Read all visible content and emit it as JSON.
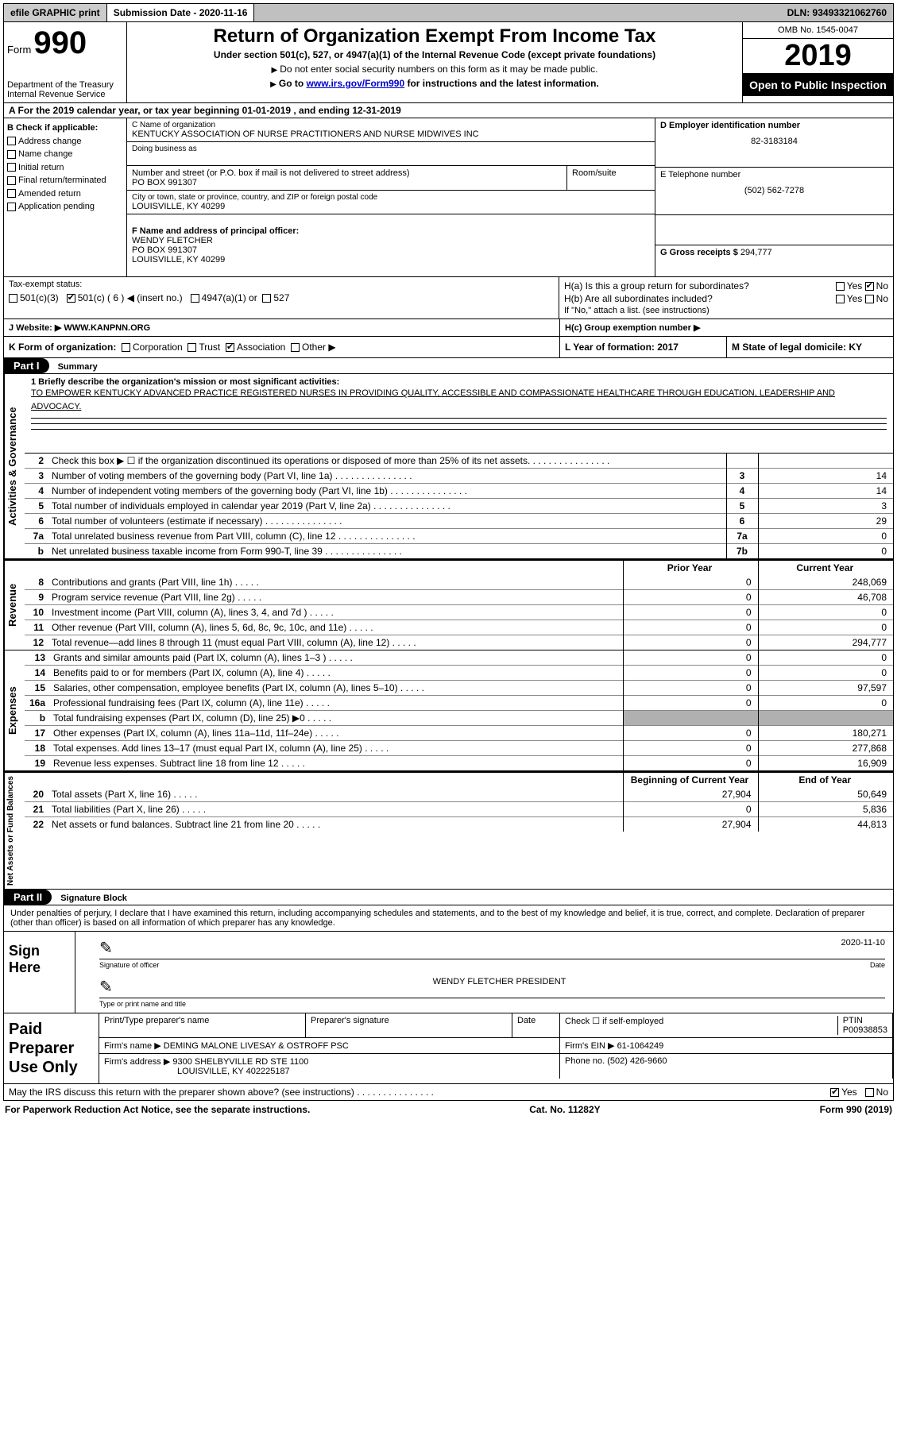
{
  "topbar": {
    "efile": "efile GRAPHIC print",
    "subdate_label": "Submission Date - 2020-11-16",
    "dln": "DLN: 93493321062760"
  },
  "header": {
    "form_word": "Form",
    "form_num": "990",
    "dept": "Department of the Treasury\nInternal Revenue Service",
    "title": "Return of Organization Exempt From Income Tax",
    "sub": "Under section 501(c), 527, or 4947(a)(1) of the Internal Revenue Code (except private foundations)",
    "instr1": "Do not enter social security numbers on this form as it may be made public.",
    "instr2_pre": "Go to ",
    "instr2_link": "www.irs.gov/Form990",
    "instr2_post": " for instructions and the latest information.",
    "omb": "OMB No. 1545-0047",
    "year": "2019",
    "inspect": "Open to Public Inspection"
  },
  "rowA": "A  For the 2019 calendar year, or tax year beginning 01-01-2019    , and ending 12-31-2019",
  "colB": {
    "title": "B Check if applicable:",
    "items": [
      "Address change",
      "Name change",
      "Initial return",
      "Final return/terminated",
      "Amended return",
      "Application pending"
    ]
  },
  "colC": {
    "name_lbl": "C Name of organization",
    "name": "KENTUCKY ASSOCIATION OF NURSE PRACTITIONERS AND NURSE MIDWIVES INC",
    "dba_lbl": "Doing business as",
    "addr_lbl": "Number and street (or P.O. box if mail is not delivered to street address)",
    "room_lbl": "Room/suite",
    "addr": "PO BOX 991307",
    "city_lbl": "City or town, state or province, country, and ZIP or foreign postal code",
    "city": "LOUISVILLE, KY  40299",
    "officer_lbl": "F  Name and address of principal officer:",
    "officer": "WENDY FLETCHER\nPO BOX 991307\nLOUISVILLE, KY  40299"
  },
  "colD": {
    "ein_lbl": "D Employer identification number",
    "ein": "82-3183184",
    "phone_lbl": "E Telephone number",
    "phone": "(502) 562-7278",
    "gross_lbl": "G Gross receipts $",
    "gross": "294,777"
  },
  "colH": {
    "a": "H(a)  Is this a group return for subordinates?",
    "b": "H(b)  Are all subordinates included?",
    "note": "If \"No,\" attach a list. (see instructions)",
    "c": "H(c)  Group exemption number ▶",
    "yes": "Yes",
    "no": "No"
  },
  "taxstatus": {
    "label": "Tax-exempt status:",
    "opts": [
      "501(c)(3)",
      "501(c) ( 6 ) ◀ (insert no.)",
      "4947(a)(1) or",
      "527"
    ]
  },
  "website": {
    "lbl": "J   Website: ▶",
    "val": "WWW.KANPNN.ORG"
  },
  "rowK": {
    "k": "K Form of organization:",
    "opts": [
      "Corporation",
      "Trust",
      "Association",
      "Other ▶"
    ],
    "L": "L Year of formation: 2017",
    "M": "M State of legal domicile: KY"
  },
  "part1": {
    "bar": "Part I",
    "title": "Summary"
  },
  "mission": {
    "label": "1  Briefly describe the organization's mission or most significant activities:",
    "text": "TO EMPOWER KENTUCKY ADVANCED PRACTICE REGISTERED NURSES IN PROVIDING QUALITY, ACCESSIBLE AND COMPASSIONATE HEALTHCARE THROUGH EDUCATION, LEADERSHIP AND ADVOCACY."
  },
  "gov_side": "Activities & Governance",
  "rev_side": "Revenue",
  "exp_side": "Expenses",
  "net_side": "Net Assets or Fund Balances",
  "gov_rows": [
    {
      "n": "2",
      "d": "Check this box ▶ ☐  if the organization discontinued its operations or disposed of more than 25% of its net assets.",
      "box": "",
      "val": ""
    },
    {
      "n": "3",
      "d": "Number of voting members of the governing body (Part VI, line 1a)",
      "box": "3",
      "val": "14"
    },
    {
      "n": "4",
      "d": "Number of independent voting members of the governing body (Part VI, line 1b)",
      "box": "4",
      "val": "14"
    },
    {
      "n": "5",
      "d": "Total number of individuals employed in calendar year 2019 (Part V, line 2a)",
      "box": "5",
      "val": "3"
    },
    {
      "n": "6",
      "d": "Total number of volunteers (estimate if necessary)",
      "box": "6",
      "val": "29"
    },
    {
      "n": "7a",
      "d": "Total unrelated business revenue from Part VIII, column (C), line 12",
      "box": "7a",
      "val": "0"
    },
    {
      "n": "b",
      "d": "Net unrelated business taxable income from Form 990-T, line 39",
      "box": "7b",
      "val": "0"
    }
  ],
  "fin_hdr": {
    "prior": "Prior Year",
    "curr": "Current Year"
  },
  "rev_rows": [
    {
      "n": "8",
      "d": "Contributions and grants (Part VIII, line 1h)",
      "p": "0",
      "c": "248,069"
    },
    {
      "n": "9",
      "d": "Program service revenue (Part VIII, line 2g)",
      "p": "0",
      "c": "46,708"
    },
    {
      "n": "10",
      "d": "Investment income (Part VIII, column (A), lines 3, 4, and 7d )",
      "p": "0",
      "c": "0"
    },
    {
      "n": "11",
      "d": "Other revenue (Part VIII, column (A), lines 5, 6d, 8c, 9c, 10c, and 11e)",
      "p": "0",
      "c": "0"
    },
    {
      "n": "12",
      "d": "Total revenue—add lines 8 through 11 (must equal Part VIII, column (A), line 12)",
      "p": "0",
      "c": "294,777"
    }
  ],
  "exp_rows": [
    {
      "n": "13",
      "d": "Grants and similar amounts paid (Part IX, column (A), lines 1–3 )",
      "p": "0",
      "c": "0"
    },
    {
      "n": "14",
      "d": "Benefits paid to or for members (Part IX, column (A), line 4)",
      "p": "0",
      "c": "0"
    },
    {
      "n": "15",
      "d": "Salaries, other compensation, employee benefits (Part IX, column (A), lines 5–10)",
      "p": "0",
      "c": "97,597"
    },
    {
      "n": "16a",
      "d": "Professional fundraising fees (Part IX, column (A), line 11e)",
      "p": "0",
      "c": "0"
    },
    {
      "n": "b",
      "d": "Total fundraising expenses (Part IX, column (D), line 25) ▶0",
      "p": "",
      "c": "",
      "shade": true
    },
    {
      "n": "17",
      "d": "Other expenses (Part IX, column (A), lines 11a–11d, 11f–24e)",
      "p": "0",
      "c": "180,271"
    },
    {
      "n": "18",
      "d": "Total expenses. Add lines 13–17 (must equal Part IX, column (A), line 25)",
      "p": "0",
      "c": "277,868"
    },
    {
      "n": "19",
      "d": "Revenue less expenses. Subtract line 18 from line 12",
      "p": "0",
      "c": "16,909"
    }
  ],
  "net_hdr": {
    "beg": "Beginning of Current Year",
    "end": "End of Year"
  },
  "net_rows": [
    {
      "n": "20",
      "d": "Total assets (Part X, line 16)",
      "p": "27,904",
      "c": "50,649"
    },
    {
      "n": "21",
      "d": "Total liabilities (Part X, line 26)",
      "p": "0",
      "c": "5,836"
    },
    {
      "n": "22",
      "d": "Net assets or fund balances. Subtract line 21 from line 20",
      "p": "27,904",
      "c": "44,813"
    }
  ],
  "part2": {
    "bar": "Part II",
    "title": "Signature Block"
  },
  "sig": {
    "decl": "Under penalties of perjury, I declare that I have examined this return, including accompanying schedules and statements, and to the best of my knowledge and belief, it is true, correct, and complete. Declaration of preparer (other than officer) is based on all information of which preparer has any knowledge.",
    "here": "Sign Here",
    "officer_sig": "Signature of officer",
    "date": "2020-11-10",
    "date_lbl": "Date",
    "name": "WENDY FLETCHER  PRESIDENT",
    "name_lbl": "Type or print name and title"
  },
  "paid": {
    "left": "Paid Preparer Use Only",
    "h": [
      "Print/Type preparer's name",
      "Preparer's signature",
      "Date"
    ],
    "check_lbl": "Check ☐ if self-employed",
    "ptin_lbl": "PTIN",
    "ptin": "P00938853",
    "firm_lbl": "Firm's name    ▶",
    "firm": "DEMING MALONE LIVESAY & OSTROFF PSC",
    "ein_lbl": "Firm's EIN ▶",
    "ein": "61-1064249",
    "addr_lbl": "Firm's address ▶",
    "addr": "9300 SHELBYVILLE RD STE 1100",
    "addr2": "LOUISVILLE, KY  402225187",
    "phone_lbl": "Phone no.",
    "phone": "(502) 426-9660"
  },
  "footer": {
    "q": "May the IRS discuss this return with the preparer shown above? (see instructions)",
    "yes": "Yes",
    "no": "No",
    "pra": "For Paperwork Reduction Act Notice, see the separate instructions.",
    "cat": "Cat. No. 11282Y",
    "form": "Form 990 (2019)"
  }
}
